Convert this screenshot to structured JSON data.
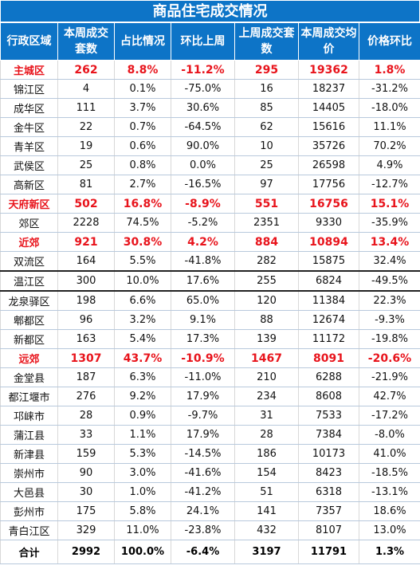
{
  "title": "商品住宅成交情况",
  "headers": [
    "行政区域",
    "本周成交套数",
    "占比情况",
    "环比上周",
    "上周成交套数",
    "本周成交均价",
    "价格环比"
  ],
  "rows": [
    [
      "主城区",
      "262",
      "8.8%",
      "-11.2%",
      "295",
      "19362",
      "1.8%"
    ],
    [
      "锦江区",
      "4",
      "0.1%",
      "-75.0%",
      "16",
      "18237",
      "-31.2%"
    ],
    [
      "成华区",
      "111",
      "3.7%",
      "30.6%",
      "85",
      "14405",
      "-18.0%"
    ],
    [
      "金牛区",
      "22",
      "0.7%",
      "-64.5%",
      "62",
      "15616",
      "11.1%"
    ],
    [
      "青羊区",
      "19",
      "0.6%",
      "90.0%",
      "10",
      "35726",
      "70.2%"
    ],
    [
      "武侯区",
      "25",
      "0.8%",
      "0.0%",
      "25",
      "26598",
      "4.9%"
    ],
    [
      "高新区",
      "81",
      "2.7%",
      "-16.5%",
      "97",
      "17756",
      "-12.7%"
    ],
    [
      "天府新区",
      "502",
      "16.8%",
      "-8.9%",
      "551",
      "16756",
      "15.1%"
    ],
    [
      "郊区",
      "2228",
      "74.5%",
      "-5.2%",
      "2351",
      "9330",
      "-35.9%"
    ],
    [
      "近郊",
      "921",
      "30.8%",
      "4.2%",
      "884",
      "10894",
      "13.4%"
    ],
    [
      "双流区",
      "164",
      "5.5%",
      "-41.8%",
      "282",
      "15875",
      "32.4%"
    ],
    [
      "温江区",
      "300",
      "10.0%",
      "17.6%",
      "255",
      "6824",
      "-49.5%"
    ],
    [
      "龙泉驿区",
      "198",
      "6.6%",
      "65.0%",
      "120",
      "11384",
      "22.3%"
    ],
    [
      "郫都区",
      "96",
      "3.2%",
      "9.1%",
      "88",
      "12674",
      "-9.3%"
    ],
    [
      "新都区",
      "163",
      "5.4%",
      "17.3%",
      "139",
      "11172",
      "-19.8%"
    ],
    [
      "远郊",
      "1307",
      "43.7%",
      "-10.9%",
      "1467",
      "8091",
      "-20.6%"
    ],
    [
      "金堂县",
      "187",
      "6.3%",
      "-11.0%",
      "210",
      "6288",
      "-21.9%"
    ],
    [
      "都江堰市",
      "276",
      "9.2%",
      "17.9%",
      "234",
      "8608",
      "42.7%"
    ],
    [
      "邛崃市",
      "28",
      "0.9%",
      "-9.7%",
      "31",
      "7533",
      "-17.2%"
    ],
    [
      "蒲江县",
      "33",
      "1.1%",
      "17.9%",
      "28",
      "7384",
      "-8.0%"
    ],
    [
      "新津县",
      "159",
      "5.3%",
      "-14.5%",
      "186",
      "10173",
      "41.0%"
    ],
    [
      "崇州市",
      "90",
      "3.0%",
      "-41.6%",
      "154",
      "8423",
      "-18.5%"
    ],
    [
      "大邑县",
      "30",
      "1.0%",
      "-41.2%",
      "51",
      "6318",
      "-13.1%"
    ],
    [
      "彭州市",
      "175",
      "5.8%",
      "24.1%",
      "141",
      "7357",
      "18.6%"
    ],
    [
      "青白江区",
      "329",
      "11.0%",
      "-23.8%",
      "432",
      "8107",
      "13.0%"
    ]
  ],
  "total": [
    "合计",
    "2992",
    "100.0%",
    "-6.4%",
    "3197",
    "11791",
    "1.3%"
  ],
  "colors": {
    "header_bg": "#0d74c7",
    "header_text": "#ffffff",
    "highlight_text": "#e8141c"
  }
}
